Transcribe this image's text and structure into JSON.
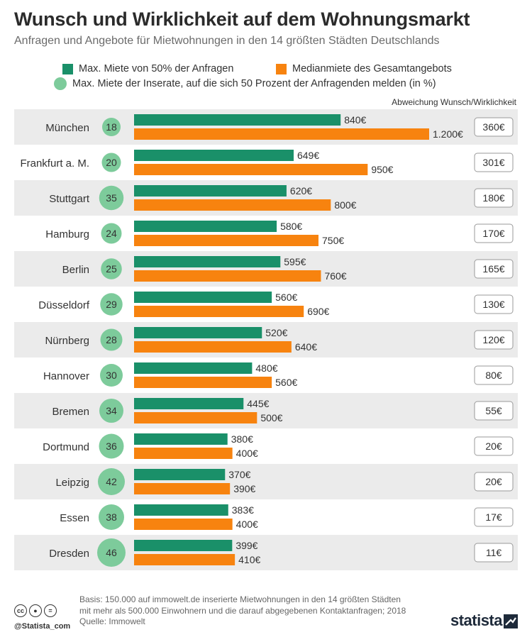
{
  "title": "Wunsch und Wirklichkeit auf dem Wohnungsmarkt",
  "subtitle": "Anfragen und Angebote für Mietwohnungen in den 14 größten Städten Deutschlands",
  "legend": {
    "green": "Max. Miete von 50% der Anfragen",
    "orange": "Medianmiete des Gesamtangebots",
    "circle": "Max. Miete der Inserate, auf die sich 50 Prozent der Anfragenden melden (in %)"
  },
  "diff_header": "Abweichung Wunsch/Wirklichkeit",
  "colors": {
    "green": "#1a9069",
    "orange": "#f7830f",
    "circle": "#7dcb9b",
    "stripe": "#ebebeb"
  },
  "chart_data": {
    "type": "bar",
    "orientation": "horizontal",
    "categories": [
      "München",
      "Frankfurt a. M.",
      "Stuttgart",
      "Hamburg",
      "Berlin",
      "Düsseldorf",
      "Nürnberg",
      "Hannover",
      "Bremen",
      "Dortmund",
      "Leipzig",
      "Essen",
      "Dresden"
    ],
    "series": [
      {
        "name": "Max. Miete von 50% der Anfragen",
        "values": [
          840,
          649,
          620,
          580,
          595,
          560,
          520,
          480,
          445,
          380,
          370,
          383,
          399
        ],
        "labels": [
          "840€",
          "649€",
          "620€",
          "580€",
          "595€",
          "560€",
          "520€",
          "480€",
          "445€",
          "380€",
          "370€",
          "383€",
          "399€"
        ]
      },
      {
        "name": "Medianmiete des Gesamtangebots",
        "values": [
          1200,
          950,
          800,
          750,
          760,
          690,
          640,
          560,
          500,
          400,
          390,
          400,
          410
        ],
        "labels": [
          "1.200€",
          "950€",
          "800€",
          "750€",
          "760€",
          "690€",
          "640€",
          "560€",
          "500€",
          "400€",
          "390€",
          "400€",
          "410€"
        ]
      }
    ],
    "percent": [
      18,
      20,
      35,
      24,
      25,
      29,
      28,
      30,
      34,
      36,
      42,
      38,
      46
    ],
    "difference": [
      "360€",
      "301€",
      "180€",
      "170€",
      "165€",
      "130€",
      "120€",
      "80€",
      "55€",
      "20€",
      "20€",
      "17€",
      "11€"
    ],
    "xlim": [
      0,
      1200
    ]
  },
  "footer": {
    "note_line1": "Basis: 150.000 auf immowelt.de inserierte Mietwohnungen in den 14 größten Städten",
    "note_line2": "mit mehr als 500.000 Einwohnern und die darauf abgegebenen Kontaktanfragen; 2018",
    "source": "Quelle: Immowelt",
    "handle": "@Statista_com",
    "brand": "statista"
  }
}
